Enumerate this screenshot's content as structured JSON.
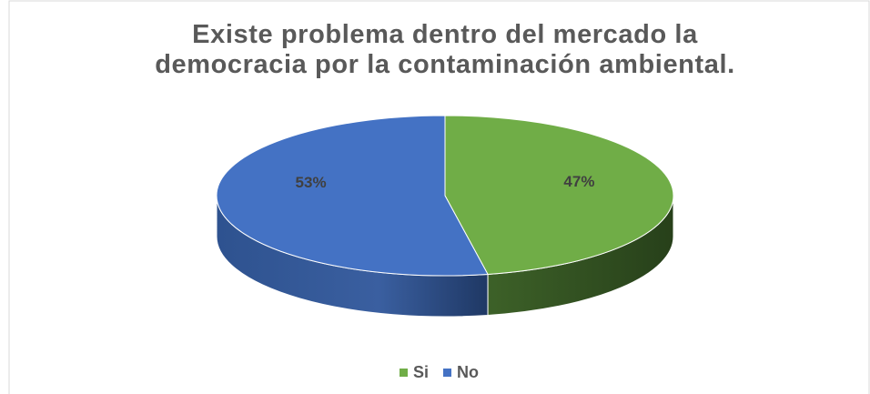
{
  "chart_data": {
    "type": "pie",
    "title": "Existe problema dentro del mercado la democracia por la contaminación ambiental.",
    "categories": [
      "Si",
      "No"
    ],
    "values": [
      47,
      53
    ],
    "value_labels": [
      "47%",
      "53%"
    ],
    "colors": [
      "#70ad47",
      "#4472c4"
    ],
    "legend": "bottom",
    "three_d": true
  }
}
